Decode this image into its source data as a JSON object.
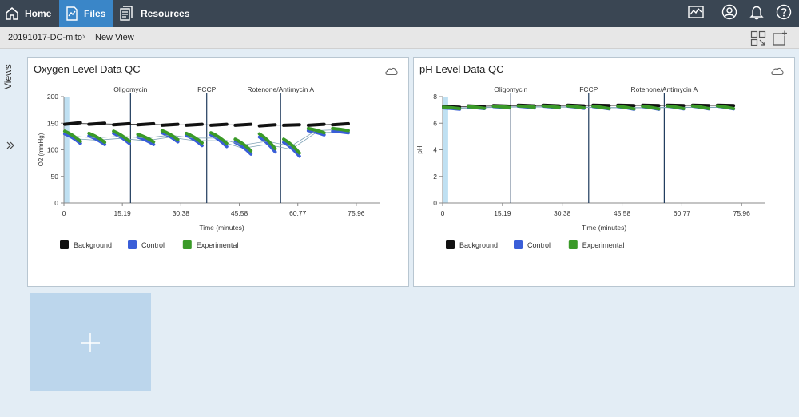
{
  "nav": {
    "home_label": "Home",
    "files_label": "Files",
    "resources_label": "Resources"
  },
  "breadcrumb": {
    "file": "20191017-DC-mito",
    "view": "New View"
  },
  "sidebar": {
    "views_label": "Views"
  },
  "colors": {
    "background_series": "#111111",
    "control_series": "#3a5ed8",
    "experimental_series": "#3a9a28",
    "nav_bg": "#3a4653",
    "nav_active": "#3a86c8"
  },
  "chart_data": [
    {
      "type": "line",
      "title": "Oxygen Level Data QC",
      "xlabel": "Time (minutes)",
      "ylabel": "O2 (mmHg)",
      "xlim": [
        0,
        82
      ],
      "ylim": [
        0,
        200
      ],
      "xticks": [
        0,
        15.19,
        30.38,
        45.58,
        60.77,
        75.96
      ],
      "xtick_labels": [
        "0",
        "15.19",
        "30.38",
        "45.58",
        "60.77",
        "75.96"
      ],
      "yticks": [
        0,
        50,
        100,
        150,
        200
      ],
      "ytick_labels": [
        "0",
        "50",
        "100",
        "150",
        "200"
      ],
      "cycle_starts": [
        0,
        6.3,
        12.7,
        19.0,
        25.3,
        31.6,
        38.0,
        44.3,
        50.6,
        56.9,
        63.3,
        69.6
      ],
      "injections": [
        {
          "label": "Oligomycin",
          "x": 17.3
        },
        {
          "label": "FCCP",
          "x": 37.1
        },
        {
          "label": "Rotenone/Antimycin A",
          "x": 56.3
        }
      ],
      "baseline_band": [
        0,
        1.4
      ],
      "legend": [
        "Background",
        "Control",
        "Experimental"
      ],
      "series": [
        {
          "name": "Background",
          "start": [
            148,
            148,
            147,
            147,
            146,
            146,
            146,
            146,
            145,
            146,
            146,
            147
          ],
          "end": [
            151,
            150,
            149,
            149,
            148,
            148,
            148,
            148,
            147,
            147,
            148,
            149
          ]
        },
        {
          "name": "Control",
          "start": [
            130,
            126,
            131,
            124,
            132,
            127,
            128,
            114,
            124,
            114,
            136,
            135
          ],
          "end": [
            112,
            110,
            112,
            110,
            115,
            108,
            106,
            92,
            96,
            88,
            128,
            132
          ]
        },
        {
          "name": "Experimental",
          "start": [
            135,
            131,
            135,
            129,
            136,
            131,
            132,
            120,
            130,
            120,
            140,
            140
          ],
          "end": [
            116,
            114,
            116,
            115,
            119,
            113,
            112,
            98,
            102,
            94,
            132,
            136
          ]
        }
      ]
    },
    {
      "type": "line",
      "title": "pH Level Data QC",
      "xlabel": "Time (minutes)",
      "ylabel": "pH",
      "xlim": [
        0,
        82
      ],
      "ylim": [
        0,
        8
      ],
      "xticks": [
        0,
        15.19,
        30.38,
        45.58,
        60.77,
        75.96
      ],
      "xtick_labels": [
        "0",
        "15.19",
        "30.38",
        "45.58",
        "60.77",
        "75.96"
      ],
      "yticks": [
        0,
        2,
        4,
        6,
        8
      ],
      "ytick_labels": [
        "0",
        "2",
        "4",
        "6",
        "8"
      ],
      "cycle_starts": [
        0,
        6.3,
        12.7,
        19.0,
        25.3,
        31.6,
        38.0,
        44.3,
        50.6,
        56.9,
        63.3,
        69.6
      ],
      "injections": [
        {
          "label": "Oligomycin",
          "x": 17.3
        },
        {
          "label": "FCCP",
          "x": 37.1
        },
        {
          "label": "Rotenone/Antimycin A",
          "x": 56.3
        }
      ],
      "baseline_band": [
        0,
        1.4
      ],
      "legend": [
        "Background",
        "Control",
        "Experimental"
      ],
      "series": [
        {
          "name": "Background",
          "start": [
            7.25,
            7.3,
            7.32,
            7.35,
            7.35,
            7.35,
            7.35,
            7.35,
            7.35,
            7.35,
            7.35,
            7.35
          ],
          "end": [
            7.2,
            7.25,
            7.28,
            7.3,
            7.3,
            7.3,
            7.32,
            7.32,
            7.32,
            7.32,
            7.32,
            7.32
          ]
        },
        {
          "name": "Control",
          "start": [
            7.15,
            7.2,
            7.25,
            7.28,
            7.28,
            7.28,
            7.25,
            7.25,
            7.25,
            7.28,
            7.28,
            7.28
          ],
          "end": [
            7.05,
            7.1,
            7.15,
            7.15,
            7.15,
            7.12,
            7.08,
            7.05,
            7.05,
            7.08,
            7.08,
            7.08
          ]
        },
        {
          "name": "Experimental",
          "start": [
            7.2,
            7.25,
            7.28,
            7.3,
            7.3,
            7.3,
            7.28,
            7.28,
            7.28,
            7.3,
            7.3,
            7.3
          ],
          "end": [
            7.1,
            7.12,
            7.18,
            7.2,
            7.18,
            7.15,
            7.1,
            7.08,
            7.08,
            7.1,
            7.1,
            7.1
          ]
        }
      ]
    }
  ]
}
